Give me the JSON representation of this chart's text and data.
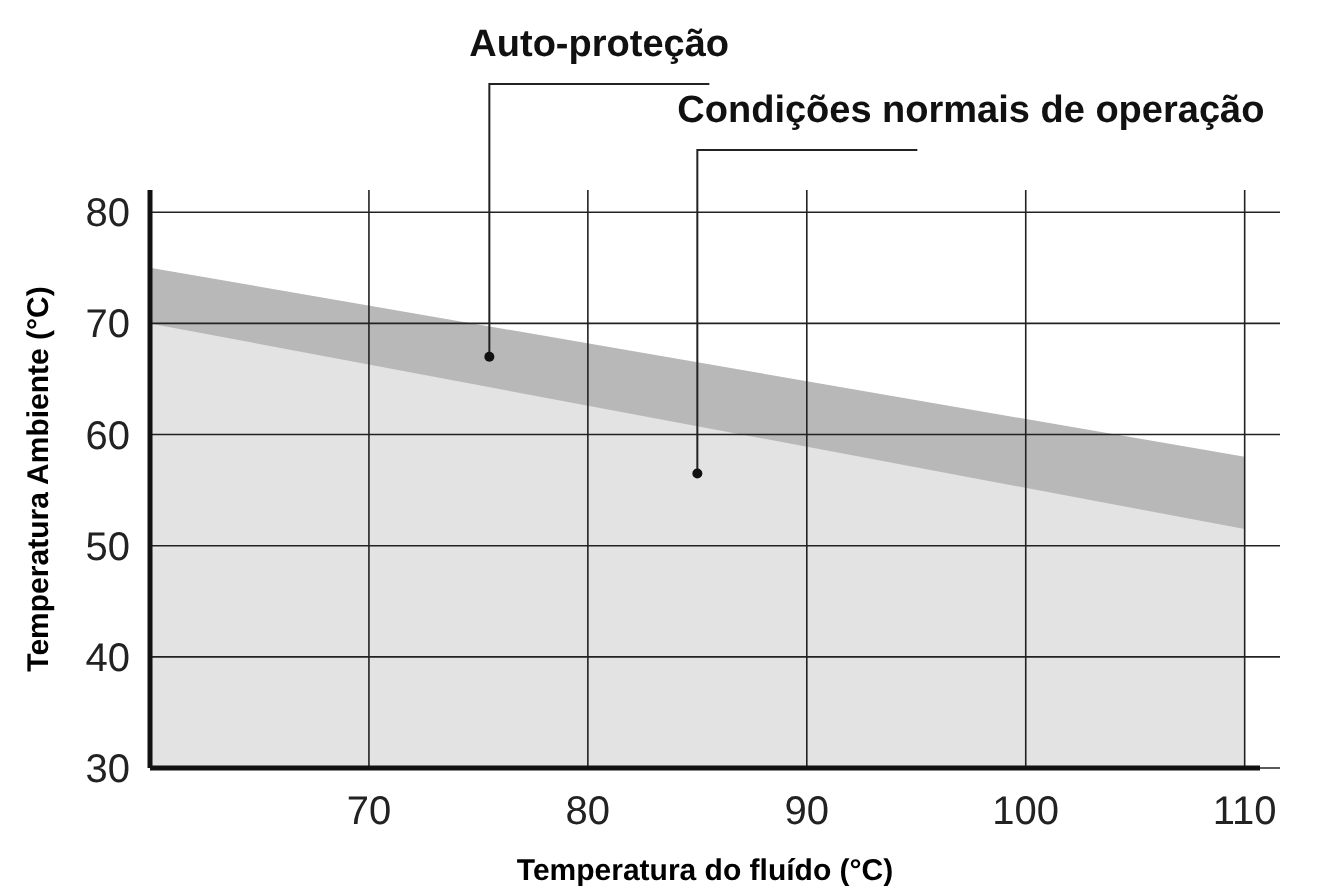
{
  "chart_data": {
    "type": "area",
    "xlabel": "Temperatura do fluído (°C)",
    "ylabel": "Temperatura Ambiente (°C)",
    "x": [
      60,
      110
    ],
    "series": [
      {
        "color": "#b8b8b9",
        "values": [
          75,
          58
        ]
      },
      {
        "color": "#e3e3e4",
        "values": [
          70,
          51.5
        ]
      }
    ],
    "xlim": [
      60,
      110.7
    ],
    "ylim": [
      30,
      82
    ],
    "xticks": [
      70,
      80,
      90,
      100,
      110
    ],
    "yticks": [
      30,
      40,
      50,
      60,
      70,
      80
    ],
    "grid": true,
    "annotations": [
      {
        "text": "Auto-proteção",
        "x": 75.5,
        "y": 67
      },
      {
        "text": "Condições normais de operação",
        "x": 85,
        "y": 56.5
      }
    ]
  }
}
